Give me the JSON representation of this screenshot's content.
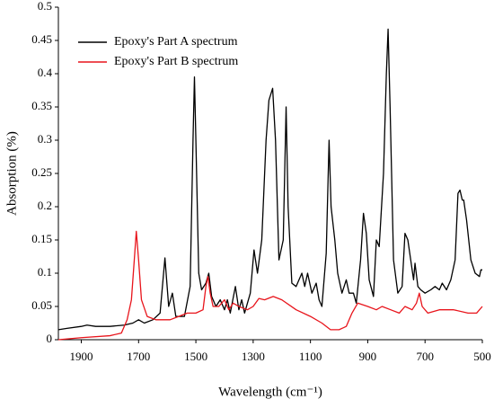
{
  "chart_data": {
    "type": "line",
    "xlabel": "Wavelength (cm⁻¹)",
    "ylabel": "Absorption (%)",
    "xlim": [
      1980,
      500
    ],
    "xticks": [
      1900,
      1700,
      1500,
      1300,
      1100,
      900,
      700,
      500
    ],
    "ylim": [
      0,
      0.5
    ],
    "yticks": [
      0,
      0.05,
      0.1,
      0.15,
      0.2,
      0.25,
      0.3,
      0.35,
      0.4,
      0.45,
      0.5
    ],
    "legend": "upper left",
    "series": [
      {
        "name": "Epoxy's Part A spectrum",
        "color": "#000000",
        "x": [
          1980,
          1950,
          1900,
          1880,
          1850,
          1800,
          1750,
          1720,
          1700,
          1680,
          1650,
          1625,
          1608,
          1595,
          1582,
          1570,
          1540,
          1520,
          1510,
          1505,
          1500,
          1490,
          1480,
          1465,
          1455,
          1445,
          1430,
          1415,
          1400,
          1390,
          1380,
          1362,
          1350,
          1340,
          1330,
          1310,
          1297,
          1285,
          1270,
          1255,
          1245,
          1232,
          1222,
          1210,
          1195,
          1185,
          1178,
          1165,
          1150,
          1130,
          1120,
          1110,
          1095,
          1080,
          1070,
          1060,
          1045,
          1035,
          1028,
          1015,
          1005,
          990,
          975,
          965,
          950,
          940,
          925,
          915,
          905,
          895,
          880,
          870,
          860,
          845,
          835,
          829,
          822,
          810,
          795,
          780,
          770,
          760,
          750,
          740,
          735,
          725,
          715,
          700,
          680,
          665,
          650,
          640,
          625,
          610,
          595,
          585,
          578,
          570,
          565,
          555,
          540,
          525,
          510,
          505,
          500
        ],
        "values": [
          0.015,
          0.017,
          0.02,
          0.022,
          0.02,
          0.02,
          0.022,
          0.025,
          0.03,
          0.025,
          0.03,
          0.04,
          0.123,
          0.05,
          0.07,
          0.035,
          0.035,
          0.08,
          0.3,
          0.395,
          0.3,
          0.1,
          0.075,
          0.085,
          0.1,
          0.065,
          0.05,
          0.06,
          0.045,
          0.06,
          0.04,
          0.08,
          0.045,
          0.06,
          0.04,
          0.07,
          0.135,
          0.1,
          0.15,
          0.3,
          0.36,
          0.378,
          0.3,
          0.12,
          0.15,
          0.35,
          0.2,
          0.085,
          0.08,
          0.1,
          0.08,
          0.1,
          0.07,
          0.085,
          0.06,
          0.05,
          0.13,
          0.3,
          0.2,
          0.15,
          0.1,
          0.07,
          0.09,
          0.07,
          0.07,
          0.055,
          0.12,
          0.19,
          0.16,
          0.09,
          0.065,
          0.15,
          0.14,
          0.25,
          0.4,
          0.467,
          0.35,
          0.12,
          0.07,
          0.08,
          0.16,
          0.15,
          0.12,
          0.09,
          0.115,
          0.08,
          0.075,
          0.07,
          0.075,
          0.08,
          0.075,
          0.085,
          0.075,
          0.09,
          0.12,
          0.22,
          0.225,
          0.21,
          0.21,
          0.18,
          0.12,
          0.1,
          0.095,
          0.105,
          0.105
        ]
      },
      {
        "name": "Epoxy's Part B spectrum",
        "color": "#e8141b",
        "x": [
          1980,
          1900,
          1800,
          1760,
          1740,
          1725,
          1715,
          1708,
          1700,
          1690,
          1670,
          1640,
          1610,
          1590,
          1560,
          1530,
          1500,
          1475,
          1465,
          1458,
          1450,
          1440,
          1420,
          1400,
          1385,
          1370,
          1350,
          1320,
          1300,
          1280,
          1260,
          1230,
          1200,
          1150,
          1100,
          1060,
          1030,
          1000,
          975,
          955,
          935,
          900,
          870,
          850,
          820,
          790,
          770,
          745,
          730,
          720,
          710,
          690,
          650,
          600,
          550,
          520,
          500
        ],
        "values": [
          0,
          0.003,
          0.006,
          0.01,
          0.03,
          0.06,
          0.12,
          0.163,
          0.12,
          0.06,
          0.035,
          0.03,
          0.03,
          0.03,
          0.035,
          0.04,
          0.04,
          0.045,
          0.08,
          0.095,
          0.07,
          0.05,
          0.05,
          0.06,
          0.045,
          0.055,
          0.05,
          0.045,
          0.05,
          0.062,
          0.06,
          0.065,
          0.06,
          0.045,
          0.035,
          0.025,
          0.015,
          0.015,
          0.02,
          0.04,
          0.055,
          0.05,
          0.045,
          0.05,
          0.045,
          0.04,
          0.05,
          0.045,
          0.055,
          0.07,
          0.05,
          0.04,
          0.045,
          0.045,
          0.04,
          0.04,
          0.05
        ]
      }
    ]
  }
}
